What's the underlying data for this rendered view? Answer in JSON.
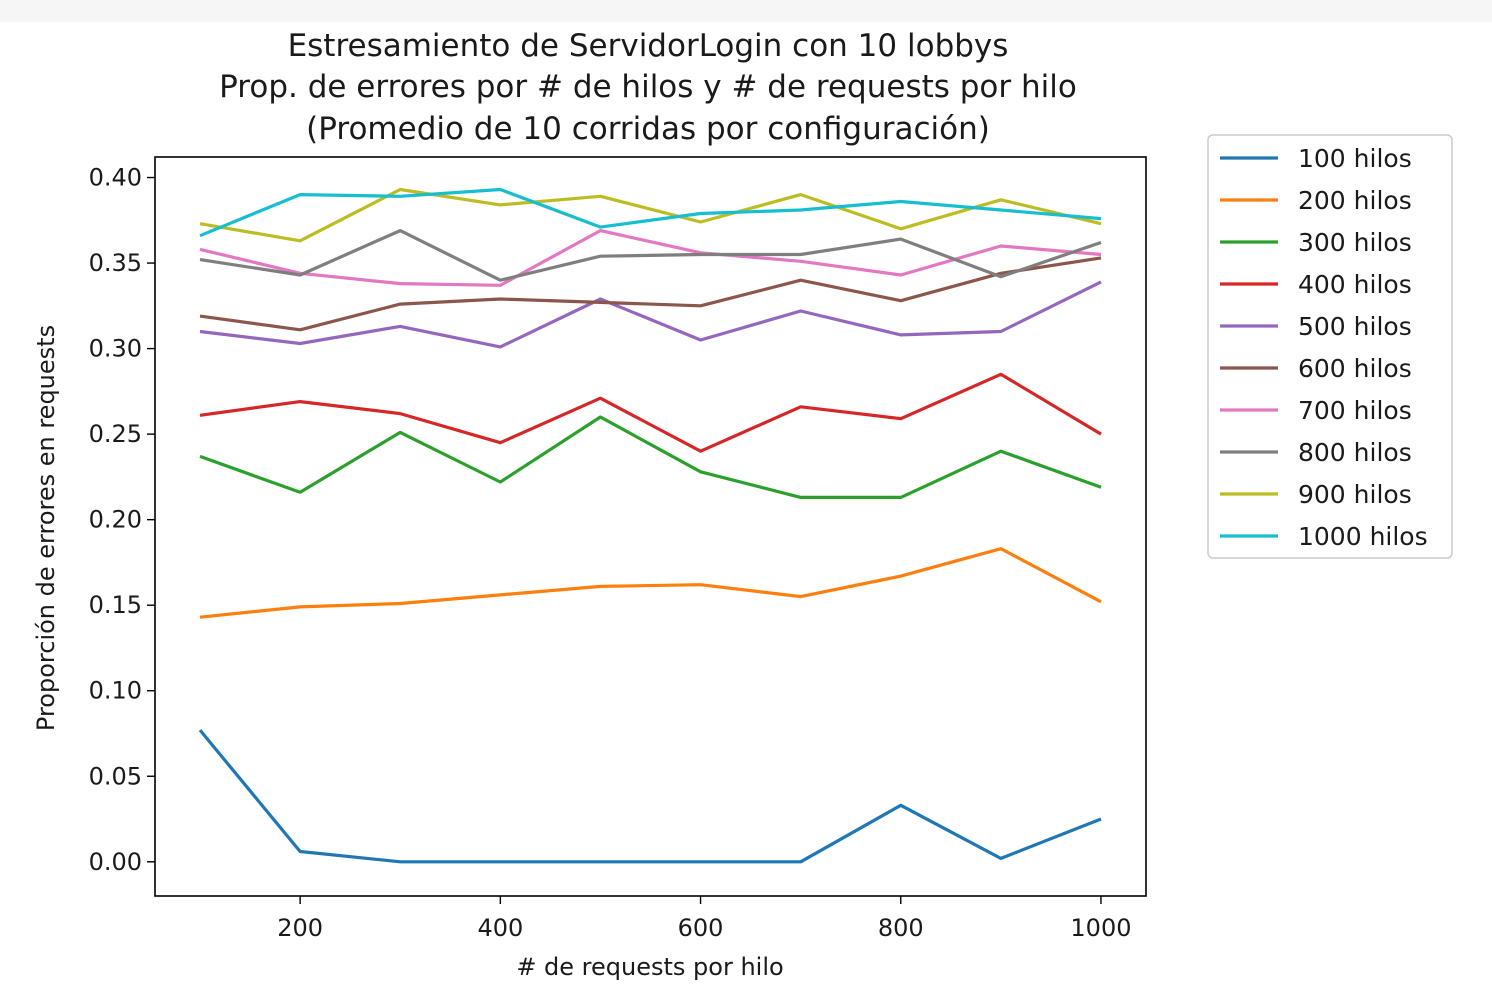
{
  "chart_data": {
    "type": "line",
    "title": [
      "Estresamiento de ServidorLogin con 10 lobbys",
      "Prop. de errores por # de hilos y # de requests por hilo",
      "(Promedio de 10 corridas por configuración)"
    ],
    "xlabel": "# de requests por hilo",
    "ylabel": "Proporción de errores en requests",
    "x": [
      100,
      200,
      300,
      400,
      500,
      600,
      700,
      800,
      900,
      1000
    ],
    "xlim": [
      55,
      1045
    ],
    "ylim": [
      -0.02,
      0.412
    ],
    "xticks": [
      200,
      400,
      600,
      800,
      1000
    ],
    "xtick_labels": [
      "200",
      "400",
      "600",
      "800",
      "1000"
    ],
    "yticks": [
      0.0,
      0.05,
      0.1,
      0.15,
      0.2,
      0.25,
      0.3,
      0.35,
      0.4
    ],
    "ytick_labels": [
      "0.00",
      "0.05",
      "0.10",
      "0.15",
      "0.20",
      "0.25",
      "0.30",
      "0.35",
      "0.40"
    ],
    "grid": false,
    "legend_position": "outside-right",
    "series": [
      {
        "name": "100 hilos",
        "color": "#1f77b4",
        "values": [
          0.077,
          0.006,
          0.0,
          0.0,
          0.0,
          0.0,
          0.0,
          0.033,
          0.002,
          0.025
        ]
      },
      {
        "name": "200 hilos",
        "color": "#ff7f0e",
        "values": [
          0.143,
          0.149,
          0.151,
          0.156,
          0.161,
          0.162,
          0.155,
          0.167,
          0.183,
          0.152
        ]
      },
      {
        "name": "300 hilos",
        "color": "#2ca02c",
        "values": [
          0.237,
          0.216,
          0.251,
          0.222,
          0.26,
          0.228,
          0.213,
          0.213,
          0.24,
          0.219
        ]
      },
      {
        "name": "400 hilos",
        "color": "#d62728",
        "values": [
          0.261,
          0.269,
          0.262,
          0.245,
          0.271,
          0.24,
          0.266,
          0.259,
          0.285,
          0.25
        ]
      },
      {
        "name": "500 hilos",
        "color": "#9467bd",
        "values": [
          0.31,
          0.303,
          0.313,
          0.301,
          0.329,
          0.305,
          0.322,
          0.308,
          0.31,
          0.339
        ]
      },
      {
        "name": "600 hilos",
        "color": "#8c564b",
        "values": [
          0.319,
          0.311,
          0.326,
          0.329,
          0.327,
          0.325,
          0.34,
          0.328,
          0.344,
          0.353
        ]
      },
      {
        "name": "700 hilos",
        "color": "#e377c2",
        "values": [
          0.358,
          0.344,
          0.338,
          0.337,
          0.369,
          0.356,
          0.351,
          0.343,
          0.36,
          0.355
        ]
      },
      {
        "name": "800 hilos",
        "color": "#7f7f7f",
        "values": [
          0.352,
          0.343,
          0.369,
          0.34,
          0.354,
          0.355,
          0.355,
          0.364,
          0.342,
          0.362
        ]
      },
      {
        "name": "900 hilos",
        "color": "#bcbd22",
        "values": [
          0.373,
          0.363,
          0.393,
          0.384,
          0.389,
          0.374,
          0.39,
          0.37,
          0.387,
          0.373
        ]
      },
      {
        "name": "1000 hilos",
        "color": "#17becf",
        "values": [
          0.366,
          0.39,
          0.389,
          0.393,
          0.371,
          0.379,
          0.381,
          0.386,
          0.381,
          0.376
        ]
      }
    ]
  }
}
